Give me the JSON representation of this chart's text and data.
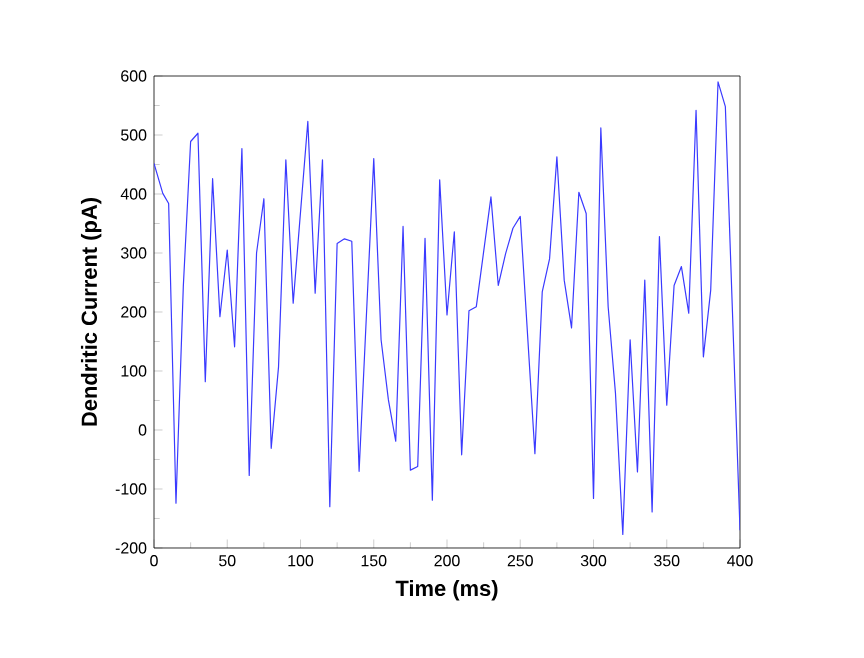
{
  "chart_data": {
    "type": "line",
    "xlabel": "Time (ms)",
    "ylabel": "Dendritic Current   (pA)",
    "x": [
      0,
      6,
      10,
      15,
      20,
      25,
      30,
      35,
      40,
      45,
      50,
      55,
      60,
      65,
      70,
      75,
      80,
      85,
      90,
      95,
      105,
      110,
      115,
      120,
      125,
      130,
      135,
      140,
      150,
      155,
      160,
      165,
      170,
      175,
      180,
      185,
      190,
      195,
      200,
      205,
      210,
      215,
      220,
      230,
      235,
      240,
      245,
      250,
      260,
      265,
      270,
      275,
      280,
      285,
      290,
      295,
      300,
      305,
      310,
      315,
      320,
      325,
      330,
      335,
      340,
      345,
      350,
      355,
      360,
      365,
      370,
      375,
      380,
      385,
      390,
      400
    ],
    "values": [
      452,
      401,
      384,
      -124,
      243,
      489,
      503,
      82,
      426,
      192,
      305,
      141,
      477,
      -77,
      300,
      392,
      -31,
      107,
      458,
      215,
      523,
      232,
      458,
      -130,
      316,
      324,
      320,
      -70,
      460,
      153,
      51,
      -19,
      345,
      -68,
      -62,
      325,
      -119,
      424,
      195,
      336,
      -42,
      202,
      209,
      395,
      245,
      299,
      342,
      362,
      -40,
      234,
      290,
      463,
      254,
      173,
      403,
      367,
      -116,
      512,
      209,
      62,
      -177,
      153,
      -71,
      254,
      -139,
      328,
      42,
      245,
      277,
      198,
      542,
      124,
      237,
      590,
      548,
      -170
    ],
    "color": "#3a3aff",
    "xlim": [
      0,
      400
    ],
    "ylim": [
      -200,
      600
    ],
    "xticks": [
      0,
      50,
      100,
      150,
      200,
      250,
      300,
      350,
      400
    ],
    "yticks": [
      -200,
      -100,
      0,
      100,
      200,
      300,
      400,
      500,
      600
    ],
    "grid": false,
    "marker": "none",
    "line_style": "solid"
  }
}
